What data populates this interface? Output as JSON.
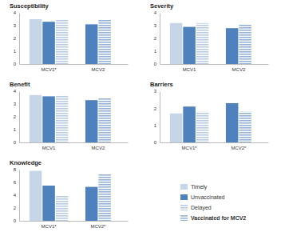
{
  "chart_data": [
    {
      "type": "bar",
      "title": "Susceptibility",
      "categories": [
        "MCV1*",
        "MCV2"
      ],
      "series": [
        {
          "name": "Timely",
          "color": "#c6d5e8",
          "values": [
            3.5,
            null
          ]
        },
        {
          "name": "Unvaccinated",
          "color": "#4f81bd",
          "values": [
            3.3,
            3.1
          ]
        },
        {
          "name": "Delayed",
          "color": "#b8cce4",
          "values": [
            3.5,
            null
          ]
        },
        {
          "name": "Vaccinated for MCV2",
          "color": "#95b3d7",
          "values": [
            null,
            3.5
          ]
        }
      ],
      "ylim": [
        0,
        4
      ],
      "yticks": [
        0,
        1,
        2,
        3,
        4
      ]
    },
    {
      "type": "bar",
      "title": "Severity",
      "categories": [
        "MCV1",
        "MCV2"
      ],
      "series": [
        {
          "name": "Timely",
          "color": "#c6d5e8",
          "values": [
            3.2,
            null
          ]
        },
        {
          "name": "Unvaccinated",
          "color": "#4f81bd",
          "values": [
            2.9,
            2.8
          ]
        },
        {
          "name": "Delayed",
          "color": "#b8cce4",
          "values": [
            3.2,
            null
          ]
        },
        {
          "name": "Vaccinated for MCV2",
          "color": "#95b3d7",
          "values": [
            null,
            3.1
          ]
        }
      ],
      "ylim": [
        0,
        4
      ],
      "yticks": [
        0,
        1,
        2,
        3,
        4
      ]
    },
    {
      "type": "bar",
      "title": "Benefit",
      "categories": [
        "MCV1",
        "MCV2"
      ],
      "series": [
        {
          "name": "Timely",
          "color": "#c6d5e8",
          "values": [
            3.7,
            null
          ]
        },
        {
          "name": "Unvaccinated",
          "color": "#4f81bd",
          "values": [
            3.6,
            3.3
          ]
        },
        {
          "name": "Delayed",
          "color": "#b8cce4",
          "values": [
            3.7,
            null
          ]
        },
        {
          "name": "Vaccinated for MCV2",
          "color": "#95b3d7",
          "values": [
            null,
            3.5
          ]
        }
      ],
      "ylim": [
        0,
        4
      ],
      "yticks": [
        0,
        1,
        2,
        3,
        4
      ]
    },
    {
      "type": "bar",
      "title": "Barriers",
      "categories": [
        "MCV1*",
        "MCV2*"
      ],
      "series": [
        {
          "name": "Timely",
          "color": "#c6d5e8",
          "values": [
            1.7,
            null
          ]
        },
        {
          "name": "Unvaccinated",
          "color": "#4f81bd",
          "values": [
            2.1,
            2.3
          ]
        },
        {
          "name": "Delayed",
          "color": "#b8cce4",
          "values": [
            1.8,
            null
          ]
        },
        {
          "name": "Vaccinated for MCV2",
          "color": "#95b3d7",
          "values": [
            null,
            1.8
          ]
        }
      ],
      "ylim": [
        0,
        3
      ],
      "yticks": [
        0,
        1,
        2,
        3
      ]
    },
    {
      "type": "bar",
      "title": "Knowledge",
      "categories": [
        "MCV1*",
        "MCV2*"
      ],
      "series": [
        {
          "name": "Timely",
          "color": "#c6d5e8",
          "values": [
            7.8,
            null
          ]
        },
        {
          "name": "Unvaccinated",
          "color": "#4f81bd",
          "values": [
            5.5,
            5.3
          ]
        },
        {
          "name": "Delayed",
          "color": "#b8cce4",
          "values": [
            4.0,
            null
          ]
        },
        {
          "name": "Vaccinated for MCV2",
          "color": "#95b3d7",
          "values": [
            null,
            7.3
          ]
        }
      ],
      "ylim": [
        0,
        8
      ],
      "yticks": [
        0,
        2,
        4,
        6,
        8
      ]
    }
  ]
}
